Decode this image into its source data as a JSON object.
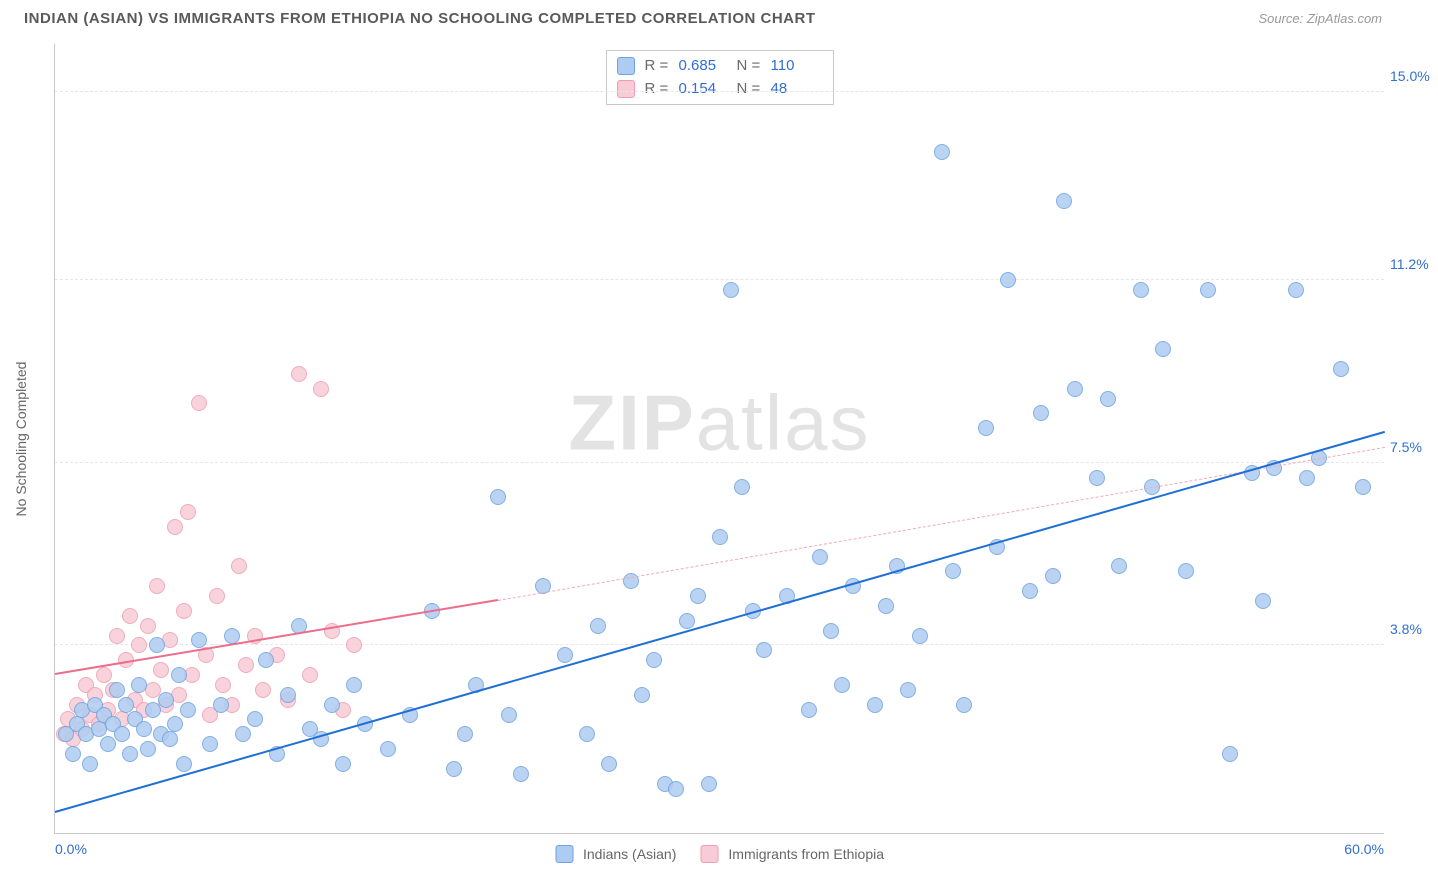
{
  "header": {
    "title": "INDIAN (ASIAN) VS IMMIGRANTS FROM ETHIOPIA NO SCHOOLING COMPLETED CORRELATION CHART",
    "source": "Source: ZipAtlas.com"
  },
  "chart": {
    "type": "scatter",
    "ylabel": "No Schooling Completed",
    "xlim": [
      0,
      60
    ],
    "ylim": [
      0,
      16
    ],
    "x_ticks": [
      {
        "v": 0,
        "label": "0.0%"
      },
      {
        "v": 60,
        "label": "60.0%"
      }
    ],
    "y_gridlines": [
      {
        "v": 3.8,
        "label": "3.8%"
      },
      {
        "v": 7.5,
        "label": "7.5%"
      },
      {
        "v": 11.2,
        "label": "11.2%"
      },
      {
        "v": 15.0,
        "label": "15.0%"
      }
    ],
    "background_color": "#ffffff",
    "grid_color": "#e6e6e6",
    "axis_color": "#c9c9c9",
    "tick_color_blue": "#2f6fd0",
    "tick_fontsize": 14,
    "label_fontsize": 14,
    "title_fontsize": 15,
    "marker_radius": 8,
    "series": [
      {
        "id": "indians",
        "label": "Indians (Asian)",
        "fill": "#aeccf1",
        "stroke": "#6ea2e0",
        "line_color": "#1f6fd6",
        "line_width": 2.5,
        "line_dash": "solid",
        "R": "0.685",
        "N": "110",
        "trend": {
          "x1": 0,
          "y1": 0.4,
          "x2": 60,
          "y2": 8.1
        },
        "points": [
          [
            0.5,
            2.0
          ],
          [
            0.8,
            1.6
          ],
          [
            1.0,
            2.2
          ],
          [
            1.2,
            2.5
          ],
          [
            1.4,
            2.0
          ],
          [
            1.6,
            1.4
          ],
          [
            1.8,
            2.6
          ],
          [
            2.0,
            2.1
          ],
          [
            2.2,
            2.4
          ],
          [
            2.4,
            1.8
          ],
          [
            2.6,
            2.2
          ],
          [
            2.8,
            2.9
          ],
          [
            3.0,
            2.0
          ],
          [
            3.2,
            2.6
          ],
          [
            3.4,
            1.6
          ],
          [
            3.6,
            2.3
          ],
          [
            3.8,
            3.0
          ],
          [
            4.0,
            2.1
          ],
          [
            4.2,
            1.7
          ],
          [
            4.4,
            2.5
          ],
          [
            4.6,
            3.8
          ],
          [
            4.8,
            2.0
          ],
          [
            5.0,
            2.7
          ],
          [
            5.2,
            1.9
          ],
          [
            5.4,
            2.2
          ],
          [
            5.6,
            3.2
          ],
          [
            5.8,
            1.4
          ],
          [
            6.0,
            2.5
          ],
          [
            6.5,
            3.9
          ],
          [
            7.0,
            1.8
          ],
          [
            7.5,
            2.6
          ],
          [
            8.0,
            4.0
          ],
          [
            8.5,
            2.0
          ],
          [
            9.0,
            2.3
          ],
          [
            9.5,
            3.5
          ],
          [
            10,
            1.6
          ],
          [
            10.5,
            2.8
          ],
          [
            11,
            4.2
          ],
          [
            11.5,
            2.1
          ],
          [
            12,
            1.9
          ],
          [
            12.5,
            2.6
          ],
          [
            13,
            1.4
          ],
          [
            13.5,
            3.0
          ],
          [
            14,
            2.2
          ],
          [
            15,
            1.7
          ],
          [
            16,
            2.4
          ],
          [
            17,
            4.5
          ],
          [
            18,
            1.3
          ],
          [
            18.5,
            2.0
          ],
          [
            19,
            3.0
          ],
          [
            20,
            6.8
          ],
          [
            20.5,
            2.4
          ],
          [
            21,
            1.2
          ],
          [
            22,
            5.0
          ],
          [
            23,
            3.6
          ],
          [
            24,
            2.0
          ],
          [
            24.5,
            4.2
          ],
          [
            25,
            1.4
          ],
          [
            26,
            5.1
          ],
          [
            26.5,
            2.8
          ],
          [
            27,
            3.5
          ],
          [
            27.5,
            1.0
          ],
          [
            28,
            0.9
          ],
          [
            28.5,
            4.3
          ],
          [
            29,
            4.8
          ],
          [
            29.5,
            1.0
          ],
          [
            30,
            6.0
          ],
          [
            30.5,
            11.0
          ],
          [
            31,
            7.0
          ],
          [
            31.5,
            4.5
          ],
          [
            32,
            3.7
          ],
          [
            33,
            4.8
          ],
          [
            34,
            2.5
          ],
          [
            34.5,
            5.6
          ],
          [
            35,
            4.1
          ],
          [
            35.5,
            3.0
          ],
          [
            36,
            5.0
          ],
          [
            37,
            2.6
          ],
          [
            37.5,
            4.6
          ],
          [
            38,
            5.4
          ],
          [
            38.5,
            2.9
          ],
          [
            39,
            4.0
          ],
          [
            40,
            13.8
          ],
          [
            40.5,
            5.3
          ],
          [
            41,
            2.6
          ],
          [
            42,
            8.2
          ],
          [
            42.5,
            5.8
          ],
          [
            43,
            11.2
          ],
          [
            44,
            4.9
          ],
          [
            44.5,
            8.5
          ],
          [
            45,
            5.2
          ],
          [
            45.5,
            12.8
          ],
          [
            46,
            9.0
          ],
          [
            47,
            7.2
          ],
          [
            47.5,
            8.8
          ],
          [
            48,
            5.4
          ],
          [
            49,
            11.0
          ],
          [
            49.5,
            7.0
          ],
          [
            50,
            9.8
          ],
          [
            51,
            5.3
          ],
          [
            52,
            11.0
          ],
          [
            53,
            1.6
          ],
          [
            54,
            7.3
          ],
          [
            54.5,
            4.7
          ],
          [
            55,
            7.4
          ],
          [
            56,
            11.0
          ],
          [
            56.5,
            7.2
          ],
          [
            57,
            7.6
          ],
          [
            58,
            9.4
          ],
          [
            59,
            7.0
          ]
        ]
      },
      {
        "id": "ethiopia",
        "label": "Immigrants from Ethiopia",
        "fill": "#f8ccd6",
        "stroke": "#ef9db2",
        "line_color": "#ec6d8c",
        "line_width": 2,
        "line_dash": "solid",
        "dash_ext_color": "#f3a8bb",
        "R": "0.154",
        "N": "48",
        "trend": {
          "x1": 0,
          "y1": 3.2,
          "x2": 20,
          "y2": 4.7
        },
        "trend_ext": {
          "x1": 20,
          "y1": 4.7,
          "x2": 60,
          "y2": 7.8
        },
        "points": [
          [
            0.4,
            2.0
          ],
          [
            0.6,
            2.3
          ],
          [
            0.8,
            1.9
          ],
          [
            1.0,
            2.6
          ],
          [
            1.2,
            2.1
          ],
          [
            1.4,
            3.0
          ],
          [
            1.6,
            2.4
          ],
          [
            1.8,
            2.8
          ],
          [
            2.0,
            2.2
          ],
          [
            2.2,
            3.2
          ],
          [
            2.4,
            2.5
          ],
          [
            2.6,
            2.9
          ],
          [
            2.8,
            4.0
          ],
          [
            3.0,
            2.3
          ],
          [
            3.2,
            3.5
          ],
          [
            3.4,
            4.4
          ],
          [
            3.6,
            2.7
          ],
          [
            3.8,
            3.8
          ],
          [
            4.0,
            2.5
          ],
          [
            4.2,
            4.2
          ],
          [
            4.4,
            2.9
          ],
          [
            4.6,
            5.0
          ],
          [
            4.8,
            3.3
          ],
          [
            5.0,
            2.6
          ],
          [
            5.2,
            3.9
          ],
          [
            5.4,
            6.2
          ],
          [
            5.6,
            2.8
          ],
          [
            5.8,
            4.5
          ],
          [
            6.0,
            6.5
          ],
          [
            6.2,
            3.2
          ],
          [
            6.5,
            8.7
          ],
          [
            6.8,
            3.6
          ],
          [
            7.0,
            2.4
          ],
          [
            7.3,
            4.8
          ],
          [
            7.6,
            3.0
          ],
          [
            8.0,
            2.6
          ],
          [
            8.3,
            5.4
          ],
          [
            8.6,
            3.4
          ],
          [
            9.0,
            4.0
          ],
          [
            9.4,
            2.9
          ],
          [
            10,
            3.6
          ],
          [
            10.5,
            2.7
          ],
          [
            11,
            9.3
          ],
          [
            11.5,
            3.2
          ],
          [
            12,
            9.0
          ],
          [
            12.5,
            4.1
          ],
          [
            13,
            2.5
          ],
          [
            13.5,
            3.8
          ]
        ]
      }
    ],
    "legend_top": {
      "r_label": "R =",
      "n_label": "N ="
    },
    "watermark": {
      "bold": "ZIP",
      "light": "atlas"
    }
  }
}
